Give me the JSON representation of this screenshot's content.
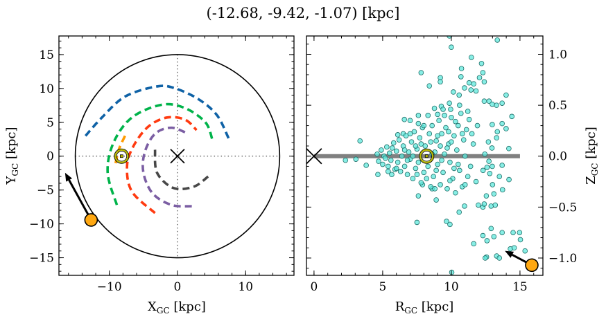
{
  "title": "(-12.68, -9.42, -1.07) [kpc]",
  "colors": {
    "arm_blue": "#0f62a6",
    "arm_green": "#00b34a",
    "arm_red": "#ff3a10",
    "arm_purple": "#7b5ea3",
    "arm_darkgray": "#474747",
    "arm_orange": "#ff9a00",
    "target": "#ffa812",
    "sun": "#b8b800",
    "scatter_fill": "#5fe8dc",
    "scatter_edge": "#1e6e68",
    "plane": "#808080"
  },
  "chart_data": [
    {
      "type": "line",
      "panel": "left",
      "xlabel": {
        "main": "X",
        "sub": "GC",
        "unit": " [kpc]"
      },
      "ylabel": {
        "main": "Y",
        "sub": "GC",
        "unit": " [kpc]"
      },
      "xlim": [
        -17.4,
        17.1
      ],
      "ylim": [
        -17.6,
        17.75
      ],
      "xticks": [
        -10,
        0,
        10
      ],
      "yticks": [
        -15,
        -10,
        -5,
        0,
        5,
        10,
        15
      ],
      "circle_radius": 15,
      "arms": [
        {
          "color": "arm_blue",
          "points": [
            [
              -13.5,
              3.0
            ],
            [
              -11.1,
              5.7
            ],
            [
              -7.7,
              8.8
            ],
            [
              -3.0,
              10.3
            ],
            [
              -0.3,
              10.0
            ],
            [
              3.1,
              8.4
            ],
            [
              5.8,
              6.05
            ],
            [
              7.5,
              2.65
            ]
          ]
        },
        {
          "color": "arm_green",
          "points": [
            [
              -8.9,
              -7.2
            ],
            [
              -10.25,
              -2.45
            ],
            [
              -9.4,
              1.97
            ],
            [
              -6.7,
              5.7
            ],
            [
              -2.3,
              7.6
            ],
            [
              1.1,
              7.1
            ],
            [
              4.1,
              5.0
            ],
            [
              5.1,
              2.5
            ]
          ]
        },
        {
          "color": "arm_red",
          "points": [
            [
              -3.3,
              -8.4
            ],
            [
              -6.7,
              -5.2
            ],
            [
              -7.4,
              -1.4
            ],
            [
              -6.4,
              1.6
            ],
            [
              -4.3,
              4.35
            ],
            [
              -1.6,
              5.7
            ],
            [
              1.1,
              5.4
            ],
            [
              2.8,
              3.85
            ]
          ]
        },
        {
          "color": "arm_purple",
          "points": [
            [
              2.1,
              -7.4
            ],
            [
              -0.9,
              -7.2
            ],
            [
              -3.65,
              -5.5
            ],
            [
              -5.0,
              -2.45
            ],
            [
              -4.8,
              0.6
            ],
            [
              -3.3,
              3.3
            ],
            [
              -0.9,
              4.2
            ],
            [
              1.6,
              3.3
            ]
          ]
        },
        {
          "color": "arm_darkgray",
          "points": [
            [
              -3.3,
              0.95
            ],
            [
              -3.0,
              -2.45
            ],
            [
              -0.6,
              -4.7
            ],
            [
              2.4,
              -4.5
            ],
            [
              4.5,
              -3.0
            ]
          ]
        },
        {
          "color": "arm_orange",
          "points": [
            [
              -7.7,
              3.0
            ],
            [
              -8.6,
              1.0
            ],
            [
              -9.1,
              -1.1
            ]
          ]
        }
      ],
      "galactic_center": [
        0,
        0
      ],
      "sun": [
        -8.2,
        0
      ],
      "target": [
        -12.68,
        -9.42
      ],
      "target_arrow_tip": [
        -16.5,
        -2.45
      ]
    },
    {
      "type": "scatter",
      "panel": "right",
      "xlabel": {
        "main": "R",
        "sub": "GC",
        "unit": " [kpc]"
      },
      "ylabel": {
        "main": "Z",
        "sub": "GC",
        "unit": " [kpc]"
      },
      "xlim": [
        -0.55,
        16.67
      ],
      "ylim": [
        -1.17,
        1.18
      ],
      "xticks": [
        0,
        5,
        10,
        15
      ],
      "yticks": [
        -1.0,
        -0.5,
        0.0,
        0.5,
        1.0
      ],
      "ytick_labels": [
        "−1.0",
        "−0.5",
        "0.0",
        "0.5",
        "1.0"
      ],
      "yaxis_side": "right",
      "plane_line": [
        0,
        15
      ],
      "galactic_center": [
        0,
        0
      ],
      "sun": [
        8.2,
        0
      ],
      "target": [
        15.86,
        -1.07
      ],
      "target_arrow_tip": [
        13.9,
        -0.93
      ],
      "points": [
        [
          9.86,
          1.18
        ],
        [
          10.0,
          1.07
        ],
        [
          13.35,
          1.14
        ],
        [
          11.46,
          0.97
        ],
        [
          12.2,
          0.91
        ],
        [
          7.8,
          0.82
        ],
        [
          10.74,
          0.86
        ],
        [
          10.7,
          0.78
        ],
        [
          9.2,
          0.77
        ],
        [
          9.2,
          0.73
        ],
        [
          8.4,
          0.69
        ],
        [
          12.3,
          0.82
        ],
        [
          12.05,
          0.77
        ],
        [
          12.4,
          0.73
        ],
        [
          11.3,
          0.72
        ],
        [
          11.63,
          0.71
        ],
        [
          11.8,
          0.64
        ],
        [
          10.96,
          0.67
        ],
        [
          11.43,
          0.65
        ],
        [
          10.15,
          0.63
        ],
        [
          10.57,
          0.6
        ],
        [
          13.99,
          0.6
        ],
        [
          14.41,
          0.39
        ],
        [
          14.19,
          0.075
        ],
        [
          13.7,
          0.52
        ],
        [
          12.75,
          0.54
        ],
        [
          12.4,
          0.54
        ],
        [
          13.29,
          0.5
        ],
        [
          12.98,
          0.51
        ],
        [
          8.77,
          0.47
        ],
        [
          9.27,
          0.49
        ],
        [
          9.86,
          0.52
        ],
        [
          9.95,
          0.46
        ],
        [
          9.0,
          0.41
        ],
        [
          7.6,
          0.4
        ],
        [
          6.58,
          0.36
        ],
        [
          7.0,
          0.35
        ],
        [
          6.1,
          0.21
        ],
        [
          6.5,
          0.22
        ],
        [
          3.35,
          0.15
        ],
        [
          2.29,
          -0.04
        ],
        [
          3.05,
          -0.03
        ],
        [
          3.8,
          -0.09
        ],
        [
          4.65,
          -0.18
        ],
        [
          5.4,
          -0.15
        ],
        [
          5.66,
          -0.18
        ],
        [
          7.5,
          -0.65
        ],
        [
          8.9,
          -0.43
        ],
        [
          9.65,
          -0.64
        ],
        [
          9.9,
          -0.67
        ],
        [
          7.6,
          -0.39
        ],
        [
          7.9,
          -0.28
        ],
        [
          8.6,
          -0.32
        ],
        [
          10.57,
          -0.55
        ],
        [
          10.96,
          -0.49
        ],
        [
          11.97,
          -0.48
        ],
        [
          12.3,
          -0.5
        ],
        [
          12.9,
          -0.49
        ],
        [
          13.2,
          -0.48
        ],
        [
          12.9,
          -0.71
        ],
        [
          12.6,
          -0.83
        ],
        [
          12.3,
          -0.78
        ],
        [
          11.63,
          -0.86
        ],
        [
          13.1,
          -0.79
        ],
        [
          13.7,
          -0.75
        ],
        [
          14.5,
          -0.75
        ],
        [
          14.97,
          -0.75
        ],
        [
          15.03,
          -0.82
        ],
        [
          14.3,
          -0.91
        ],
        [
          14.58,
          -0.9
        ],
        [
          15.37,
          -0.93
        ],
        [
          12.56,
          -0.99
        ],
        [
          12.47,
          -1.0
        ],
        [
          13.3,
          -0.98
        ],
        [
          13.5,
          -1.0
        ],
        [
          10.03,
          -1.14
        ],
        [
          13.7,
          -0.09
        ],
        [
          13.73,
          -0.33
        ],
        [
          14.2,
          -0.23
        ],
        [
          13.5,
          -0.2
        ],
        [
          13.0,
          -0.28
        ],
        [
          13.1,
          -0.37
        ],
        [
          12.55,
          -0.39
        ],
        [
          12.4,
          -0.47
        ],
        [
          12.98,
          0.31
        ],
        [
          13.7,
          0.32
        ],
        [
          13.35,
          0.24
        ],
        [
          13.99,
          0.27
        ],
        [
          13.3,
          0.18
        ],
        [
          12.96,
          0.08
        ],
        [
          12.7,
          0.14
        ],
        [
          12.44,
          0.02
        ],
        [
          12.74,
          -0.05
        ],
        [
          12.6,
          -0.11
        ],
        [
          12.8,
          -0.17
        ],
        [
          12.98,
          -0.1
        ],
        [
          12.31,
          -0.14
        ],
        [
          4.6,
          0.02
        ],
        [
          4.7,
          -0.05
        ],
        [
          4.9,
          0.06
        ],
        [
          5.0,
          -0.08
        ],
        [
          5.1,
          0.0
        ],
        [
          5.3,
          0.09
        ],
        [
          5.4,
          -0.1
        ],
        [
          5.5,
          0.03
        ],
        [
          5.6,
          -0.04
        ],
        [
          5.8,
          0.13
        ],
        [
          5.9,
          -0.13
        ],
        [
          6.0,
          0.05
        ],
        [
          6.1,
          -0.06
        ],
        [
          6.2,
          0.16
        ],
        [
          6.3,
          -0.15
        ],
        [
          6.4,
          0.0
        ],
        [
          6.5,
          0.1
        ],
        [
          6.6,
          -0.1
        ],
        [
          6.7,
          0.2
        ],
        [
          6.8,
          -0.18
        ],
        [
          6.9,
          0.04
        ],
        [
          7.0,
          -0.03
        ],
        [
          7.1,
          0.14
        ],
        [
          7.2,
          -0.22
        ],
        [
          7.3,
          0.24
        ],
        [
          7.4,
          -0.12
        ],
        [
          7.5,
          0.07
        ],
        [
          7.6,
          -0.06
        ],
        [
          7.7,
          0.18
        ],
        [
          7.8,
          -0.26
        ],
        [
          7.9,
          0.28
        ],
        [
          8.0,
          -0.16
        ],
        [
          8.1,
          0.1
        ],
        [
          8.3,
          -0.1
        ],
        [
          8.4,
          0.22
        ],
        [
          8.5,
          -0.3
        ],
        [
          8.6,
          0.3
        ],
        [
          8.7,
          -0.2
        ],
        [
          8.8,
          0.04
        ],
        [
          8.9,
          0.15
        ],
        [
          9.0,
          -0.08
        ],
        [
          9.1,
          0.35
        ],
        [
          9.2,
          -0.28
        ],
        [
          9.3,
          0.22
        ],
        [
          9.4,
          -0.16
        ],
        [
          9.5,
          0.02
        ],
        [
          9.6,
          0.28
        ],
        [
          9.7,
          -0.32
        ],
        [
          9.8,
          0.12
        ],
        [
          9.9,
          -0.06
        ],
        [
          10.0,
          0.38
        ],
        [
          10.1,
          -0.22
        ],
        [
          10.2,
          0.2
        ],
        [
          10.3,
          -0.36
        ],
        [
          10.4,
          0.06
        ],
        [
          10.5,
          0.3
        ],
        [
          10.6,
          -0.14
        ],
        [
          10.7,
          0.42
        ],
        [
          10.8,
          -0.3
        ],
        [
          10.9,
          0.16
        ],
        [
          11.0,
          0.0
        ],
        [
          11.1,
          0.26
        ],
        [
          11.2,
          -0.2
        ],
        [
          11.3,
          0.36
        ],
        [
          11.4,
          -0.1
        ],
        [
          11.6,
          0.12
        ],
        [
          11.8,
          -0.25
        ],
        [
          11.9,
          0.3
        ],
        [
          5.2,
          -0.02
        ],
        [
          5.7,
          0.08
        ],
        [
          6.0,
          -0.12
        ],
        [
          6.6,
          0.06
        ],
        [
          7.0,
          0.22
        ],
        [
          7.2,
          0.0
        ],
        [
          7.5,
          -0.18
        ],
        [
          7.8,
          0.12
        ],
        [
          8.0,
          0.3
        ],
        [
          8.2,
          -0.22
        ],
        [
          8.5,
          0.14
        ],
        [
          8.8,
          -0.32
        ],
        [
          9.0,
          0.2
        ],
        [
          9.3,
          -0.04
        ],
        [
          9.5,
          0.4
        ],
        [
          9.7,
          0.08
        ],
        [
          9.9,
          -0.24
        ],
        [
          10.0,
          0.14
        ],
        [
          10.3,
          0.34
        ],
        [
          10.5,
          -0.08
        ],
        [
          10.8,
          0.22
        ],
        [
          11.0,
          -0.28
        ],
        [
          11.2,
          0.44
        ],
        [
          8.6,
          0.02
        ],
        [
          9.2,
          0.1
        ],
        [
          7.4,
          0.1
        ],
        [
          6.8,
          -0.04
        ],
        [
          10.2,
          -0.12
        ],
        [
          9.8,
          0.24
        ],
        [
          8.9,
          -0.14
        ],
        [
          9.4,
          0.46
        ],
        [
          10.6,
          0.5
        ],
        [
          11.5,
          0.22
        ],
        [
          8.3,
          0.4
        ],
        [
          7.6,
          0.32
        ]
      ]
    }
  ]
}
